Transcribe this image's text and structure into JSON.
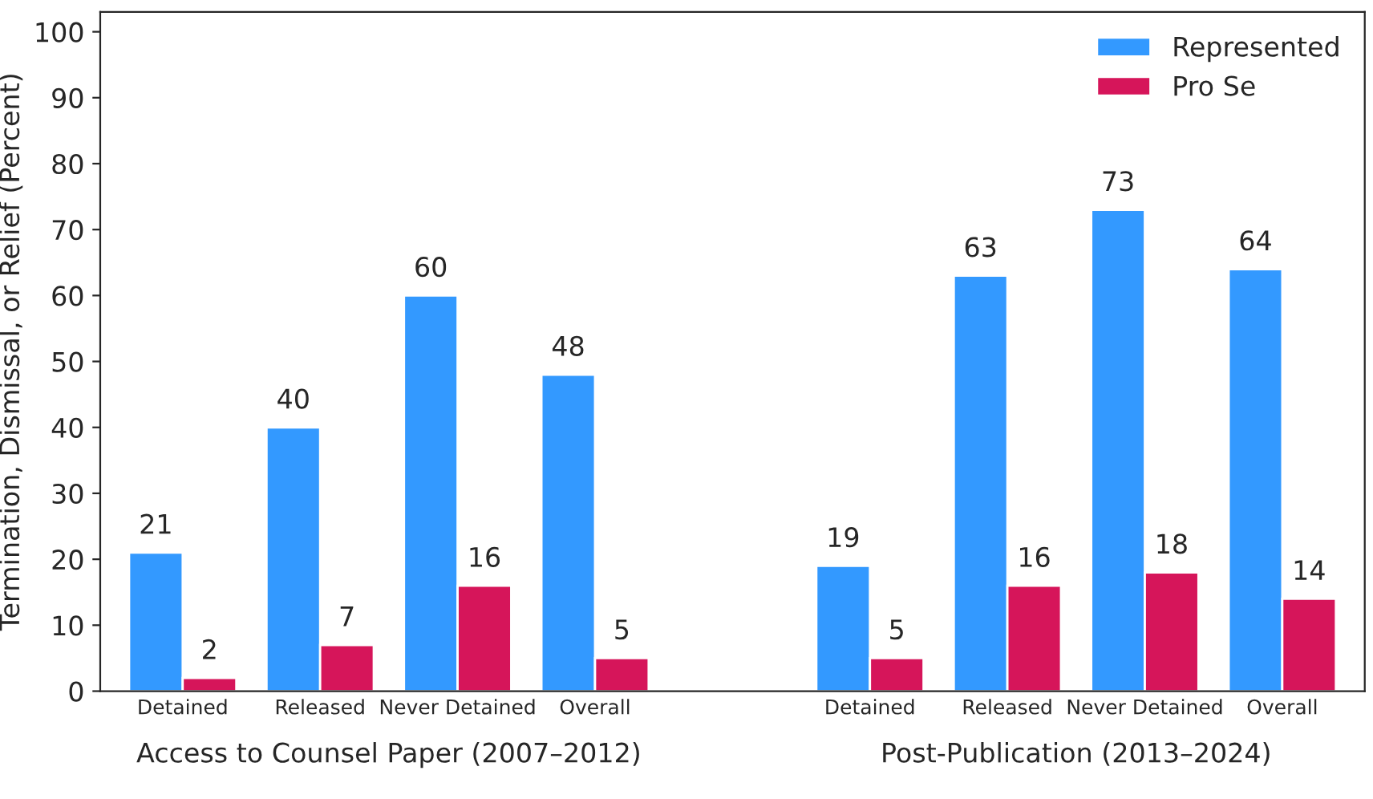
{
  "chart_data": {
    "type": "bar",
    "ylabel": "Termination, Dismissal, or Relief (Percent)",
    "categories": [
      "Detained",
      "Released",
      "Never Detained",
      "Overall",
      null,
      "Detained",
      "Released",
      "Never Detained",
      "Overall"
    ],
    "series": [
      {
        "name": "Represented",
        "color": "#3399ff",
        "values": [
          21,
          40,
          60,
          48,
          null,
          19,
          63,
          73,
          64
        ]
      },
      {
        "name": "Pro Se",
        "color": "#d6155a",
        "values": [
          2,
          7,
          16,
          5,
          null,
          5,
          16,
          18,
          14
        ]
      }
    ],
    "annotations": [
      "Access to Counsel Paper (2007–2012)",
      "Post-Publication (2013–2024)"
    ],
    "ylim": [
      0,
      103
    ],
    "yticks": [
      0,
      10,
      20,
      30,
      40,
      50,
      60,
      70,
      80,
      90,
      100
    ],
    "data_labels": true,
    "grid": false,
    "legend": "top right"
  }
}
